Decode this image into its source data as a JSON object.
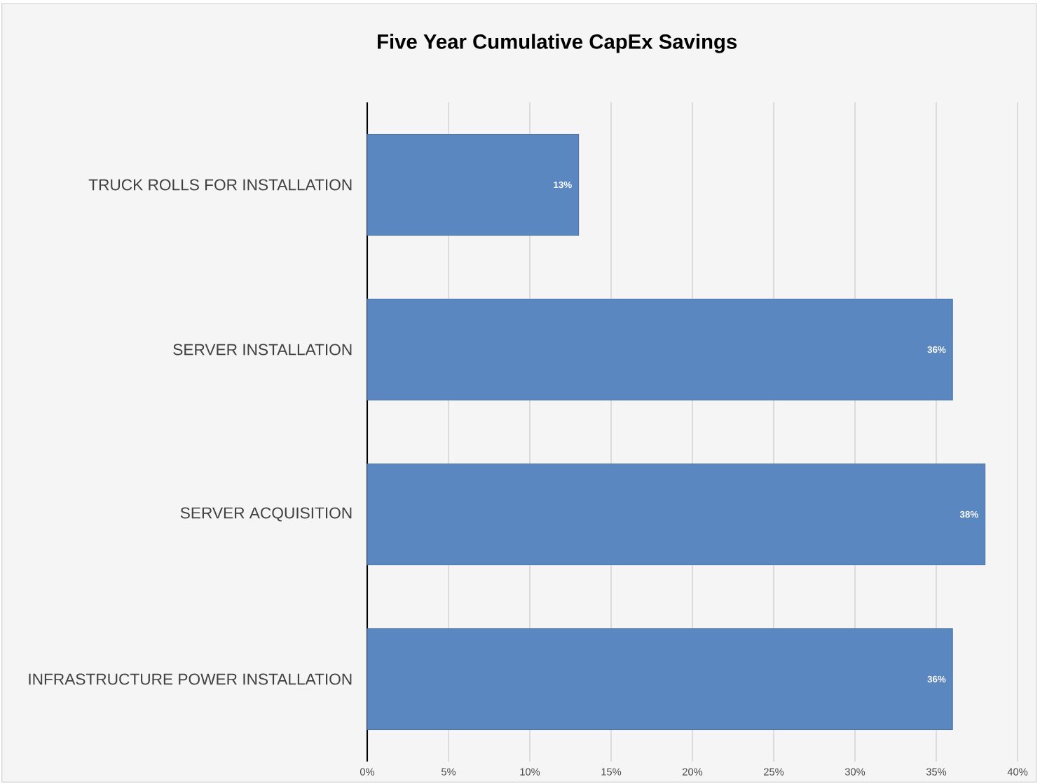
{
  "chart_data": {
    "type": "bar",
    "orientation": "horizontal",
    "title": "Five Year Cumulative CapEx Savings",
    "categories": [
      "TRUCK ROLLS FOR INSTALLATION",
      "SERVER INSTALLATION",
      "SERVER ACQUISITION",
      "INFRASTRUCTURE POWER INSTALLATION"
    ],
    "values": [
      13,
      36,
      38,
      36
    ],
    "value_labels": [
      "13%",
      "36%",
      "38%",
      "36%"
    ],
    "color": "#5b87c0",
    "xlim": [
      0,
      40
    ],
    "xticks": [
      {
        "value": 0,
        "label": "0%"
      },
      {
        "value": 5,
        "label": "5%"
      },
      {
        "value": 10,
        "label": "10%"
      },
      {
        "value": 15,
        "label": "15%"
      },
      {
        "value": 20,
        "label": "20%"
      },
      {
        "value": 25,
        "label": "25%"
      },
      {
        "value": 30,
        "label": "30%"
      },
      {
        "value": 35,
        "label": "35%"
      },
      {
        "value": 40,
        "label": "40%"
      }
    ],
    "grid": "x"
  }
}
